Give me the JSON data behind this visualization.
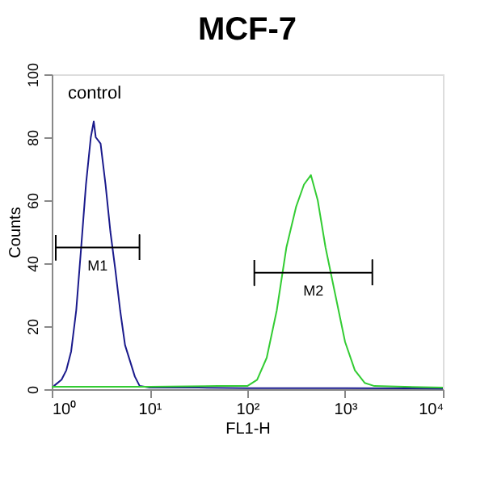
{
  "chart_data": {
    "type": "line",
    "title": "MCF-7",
    "xlabel": "FL1-H",
    "ylabel": "Counts",
    "log": "x",
    "xlim": [
      1,
      10000
    ],
    "ylim": [
      0,
      100
    ],
    "xticks": [
      {
        "value": 1,
        "label": "10⁰"
      },
      {
        "value": 10,
        "label": "10¹"
      },
      {
        "value": 100,
        "label": "10²"
      },
      {
        "value": 1000,
        "label": "10³"
      },
      {
        "value": 10000,
        "label": "10⁴"
      }
    ],
    "yticks": [
      0,
      20,
      40,
      60,
      80,
      100
    ],
    "grid": false,
    "series": [
      {
        "color": "#1a1a8c",
        "x": [
          1.05,
          1.26,
          1.41,
          1.58,
          1.78,
          2.0,
          2.24,
          2.51,
          2.69,
          2.82,
          3.16,
          3.55,
          3.98,
          4.47,
          5.01,
          5.62,
          6.31,
          7.08,
          7.94,
          10,
          31.6,
          100,
          1000,
          10000
        ],
        "values": [
          1,
          3,
          6,
          12,
          25,
          45,
          65,
          80,
          85,
          80,
          78,
          65,
          50,
          38,
          25,
          14,
          9,
          4,
          1,
          0.5,
          0.5,
          0.3,
          0.3,
          0.2
        ]
      },
      {
        "color": "#33cc33",
        "x": [
          1,
          10,
          50,
          100,
          126,
          158,
          200,
          251,
          316,
          380,
          447,
          525,
          631,
          794,
          1000,
          1259,
          1585,
          1995,
          10000
        ],
        "values": [
          0.8,
          0.8,
          1,
          1,
          3,
          10,
          25,
          45,
          58,
          65,
          68,
          60,
          45,
          30,
          15,
          6,
          2,
          1,
          0.5
        ]
      },
      {
        "name": "M1",
        "color": "#000000",
        "x": [
          1.1,
          1.1,
          1.1,
          7.9,
          7.9,
          7.9
        ],
        "values": [
          49,
          41,
          45,
          45,
          49,
          41
        ]
      },
      {
        "name": "M2",
        "color": "#000000",
        "x": [
          118,
          118,
          118,
          1900,
          1900,
          1900
        ],
        "values": [
          41,
          33,
          37,
          37,
          41,
          33
        ]
      }
    ],
    "annotations": [
      "control"
    ]
  }
}
